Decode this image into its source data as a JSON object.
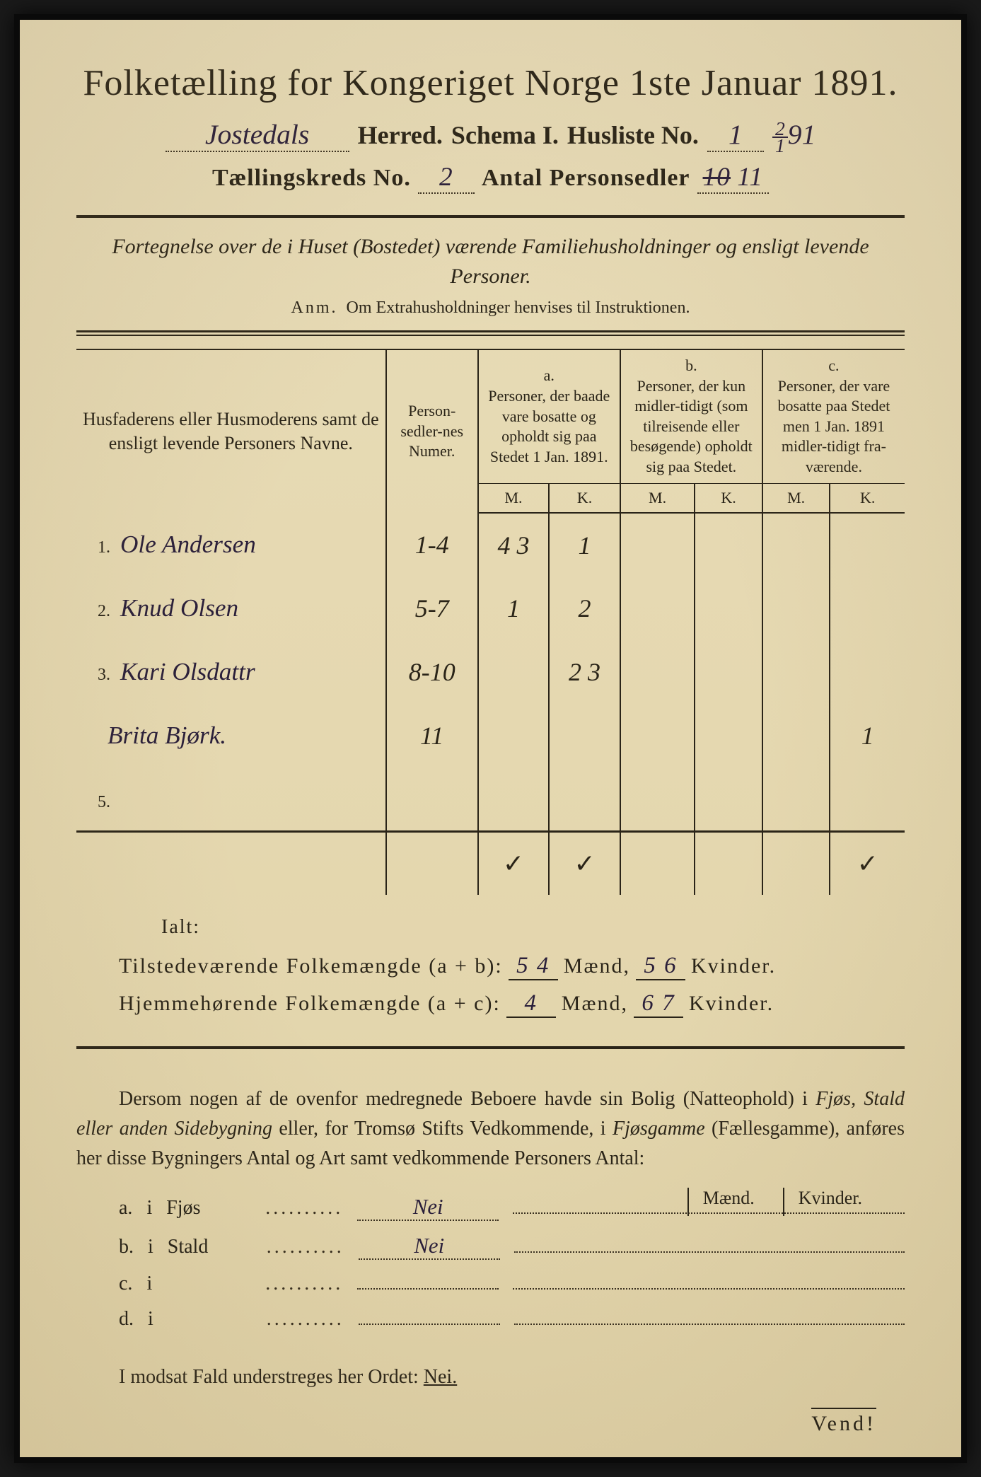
{
  "header": {
    "main_title": "Folketælling for Kongeriget Norge 1ste Januar 1891.",
    "herred_value": "Jostedals",
    "herred_label": "Herred.",
    "schema_label": "Schema I.",
    "husliste_label": "Husliste No.",
    "husliste_value": "1",
    "date_top": "2",
    "date_bot": "1",
    "date_year": "91",
    "kreds_label": "Tællingskreds No.",
    "kreds_value": "2",
    "antal_label": "Antal Personsedler",
    "antal_crossed": "10",
    "antal_value": "11"
  },
  "section": {
    "heading": "Fortegnelse over de i Huset (Bostedet) værende Familiehusholdninger og ensligt levende Personer.",
    "anm_label": "Anm.",
    "anm_text": "Om Extrahusholdninger henvises til Instruktionen."
  },
  "table": {
    "col_name": "Husfaderens eller Husmoderens samt de ensligt levende Personers Navne.",
    "col_numer": "Person-sedler-nes Numer.",
    "col_a_label": "a.",
    "col_a": "Personer, der baade vare bosatte og opholdt sig paa Stedet 1 Jan. 1891.",
    "col_b_label": "b.",
    "col_b": "Personer, der kun midler-tidigt (som tilreisende eller besøgende) opholdt sig paa Stedet.",
    "col_c_label": "c.",
    "col_c": "Personer, der vare bosatte paa Stedet men 1 Jan. 1891 midler-tidigt fra-værende.",
    "m": "M.",
    "k": "K.",
    "rows": [
      {
        "num": "1.",
        "name": "Ole Andersen",
        "sedler": "1-4",
        "a_m": "4 3",
        "a_k": "1",
        "b_m": "",
        "b_k": "",
        "c_m": "",
        "c_k": ""
      },
      {
        "num": "2.",
        "name": "Knud Olsen",
        "sedler": "5-7",
        "a_m": "1",
        "a_k": "2",
        "b_m": "",
        "b_k": "",
        "c_m": "",
        "c_k": ""
      },
      {
        "num": "3.",
        "name": "Kari Olsdattr",
        "sedler": "8-10",
        "a_m": "",
        "a_k": "2 3",
        "b_m": "",
        "b_k": "",
        "c_m": "",
        "c_k": ""
      },
      {
        "num": "",
        "name": "Brita Bjørk.",
        "sedler": "11",
        "a_m": "",
        "a_k": "",
        "b_m": "",
        "b_k": "",
        "c_m": "",
        "c_k": "1"
      },
      {
        "num": "5.",
        "name": "",
        "sedler": "",
        "a_m": "",
        "a_k": "",
        "b_m": "",
        "b_k": "",
        "c_m": "",
        "c_k": ""
      }
    ],
    "check_a_m": "✓",
    "check_a_k": "✓",
    "check_c_k": "✓"
  },
  "totals": {
    "ialt": "Ialt:",
    "line1_label": "Tilstedeværende Folkemængde (a + b):",
    "line1_m": "5 4",
    "maend": "Mænd,",
    "line1_k": "5 6",
    "kvinder": "Kvinder.",
    "line2_label": "Hjemmehørende Folkemængde (a + c):",
    "line2_m": "4",
    "line2_k": "6 7"
  },
  "paragraph": {
    "text1": "Dersom nogen af de ovenfor medregnede Beboere havde sin Bolig (Natteophold) i ",
    "italic1": "Fjøs, Stald eller anden Sidebygning",
    "text2": " eller, for Tromsø Stifts Vedkommende, i ",
    "italic2": "Fjøsgamme",
    "text3": " (Fællesgamme), anføres her disse Bygningers Antal og Art samt vedkommende Personers Antal:"
  },
  "buildings": {
    "maend": "Mænd.",
    "kvinder": "Kvinder.",
    "rows": [
      {
        "letter": "a.",
        "i": "i",
        "label": "Fjøs",
        "value": "Nei"
      },
      {
        "letter": "b.",
        "i": "i",
        "label": "Stald",
        "value": "Nei"
      },
      {
        "letter": "c.",
        "i": "i",
        "label": "",
        "value": ""
      },
      {
        "letter": "d.",
        "i": "i",
        "label": "",
        "value": ""
      }
    ]
  },
  "footer": {
    "text": "I modsat Fald understreges her Ordet: ",
    "nei": "Nei.",
    "vend": "Vend!"
  }
}
